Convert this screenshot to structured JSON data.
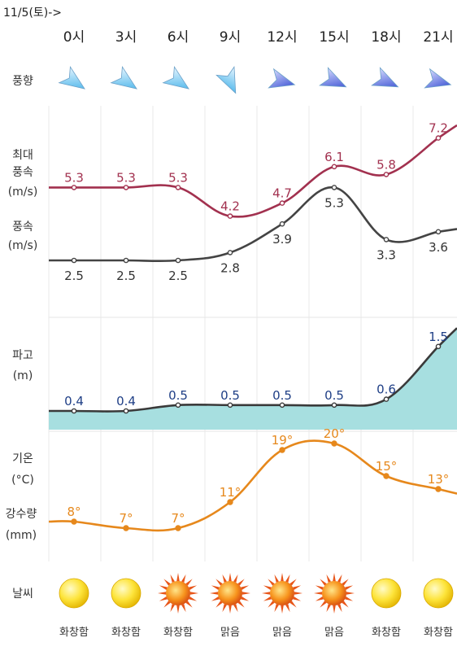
{
  "header": {
    "date": "11/5(토)->"
  },
  "row_labels": {
    "wind_dir": "풍향",
    "max_wind": [
      "최대",
      "풍속",
      "(m/s)"
    ],
    "wind": [
      "풍속",
      "(m/s)"
    ],
    "wave": [
      "파고",
      "(m)"
    ],
    "temp": [
      "기온",
      "(°C)"
    ],
    "rain": [
      "강수량",
      "(mm)"
    ],
    "weather": "날씨"
  },
  "chart_data": {
    "type": "line",
    "x": [
      "0시",
      "3시",
      "6시",
      "9시",
      "12시",
      "15시",
      "18시",
      "21시"
    ],
    "series": [
      {
        "key": "max_wind",
        "values": [
          5.3,
          5.3,
          5.3,
          4.2,
          4.7,
          6.1,
          5.8,
          7.2
        ],
        "labels": [
          "5.3",
          "5.3",
          "5.3",
          "4.2",
          "4.7",
          "6.1",
          "5.8",
          "7.2"
        ],
        "color": "#a2314f"
      },
      {
        "key": "wind",
        "values": [
          2.5,
          2.5,
          2.5,
          2.8,
          3.9,
          5.3,
          3.3,
          3.6
        ],
        "labels": [
          "2.5",
          "2.5",
          "2.5",
          "2.8",
          "3.9",
          "5.3",
          "3.3",
          "3.6"
        ],
        "color": "#444444"
      },
      {
        "key": "wave",
        "values": [
          0.4,
          0.4,
          0.5,
          0.5,
          0.5,
          0.5,
          0.6,
          1.5
        ],
        "labels": [
          "0.4",
          "0.4",
          "0.5",
          "0.5",
          "0.5",
          "0.5",
          "0.6",
          "1.5"
        ],
        "color": "#3a3a3a",
        "fill": "#a7dfe0",
        "label_color": "#1f3f86"
      },
      {
        "key": "temp",
        "values": [
          8,
          7,
          7,
          11,
          19,
          20,
          15,
          13
        ],
        "labels": [
          "8°",
          "7°",
          "7°",
          "11°",
          "19°",
          "20°",
          "15°",
          "13°"
        ],
        "color": "#e6881c"
      }
    ],
    "wind_direction_icons": [
      "arrow-light-blue",
      "arrow-light-blue",
      "arrow-light-blue",
      "arrow-light-blue",
      "arrow-dark-blue",
      "arrow-dark-blue",
      "arrow-dark-blue",
      "arrow-dark-blue"
    ],
    "wind_direction_angles": [
      35,
      35,
      35,
      65,
      15,
      25,
      25,
      15
    ],
    "weather_icons": [
      "sun-clear",
      "sun-clear",
      "sun-bright",
      "sun-bright",
      "sun-bright",
      "sun-bright",
      "sun-clear",
      "sun-clear"
    ],
    "weather": [
      "화창함",
      "화창함",
      "화창함",
      "맑음",
      "맑음",
      "맑음",
      "화창함",
      "화창함"
    ],
    "grid": true
  }
}
